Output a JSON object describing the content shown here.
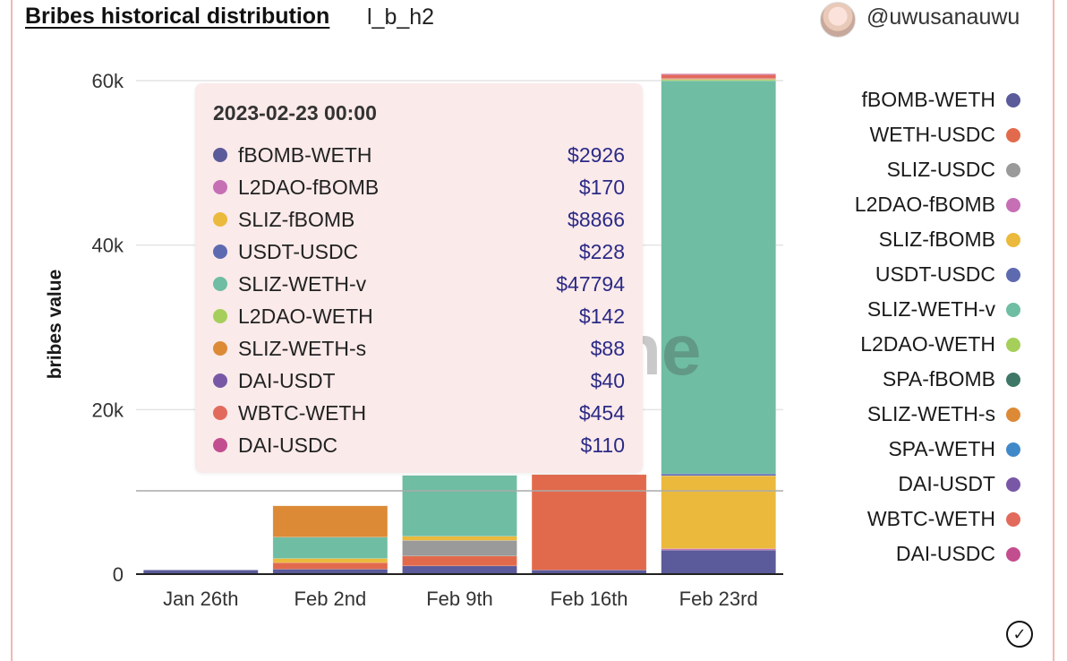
{
  "header": {
    "title": "Bribes historical distribution",
    "subtitle": "l_b_h2",
    "username": "@uwusanauwu"
  },
  "watermark": "ne",
  "chart_data": {
    "type": "bar",
    "stacked": true,
    "title": "Bribes historical distribution",
    "xlabel": "",
    "ylabel": "bribes value",
    "ylim": [
      0,
      60000
    ],
    "yticks": [
      0,
      20000,
      40000,
      60000
    ],
    "ytick_labels": [
      "0",
      "20k",
      "40k",
      "60k"
    ],
    "categories": [
      "Jan 26th",
      "Feb 2nd",
      "Feb 9th",
      "Feb 16th",
      "Feb 23rd"
    ],
    "series": [
      {
        "name": "fBOMB-WETH",
        "color": "#5b5a9a",
        "values": [
          500,
          600,
          1000,
          500,
          2926
        ]
      },
      {
        "name": "WETH-USDC",
        "color": "#e26a4c",
        "values": [
          0,
          800,
          1200,
          11600,
          0
        ]
      },
      {
        "name": "SLIZ-USDC",
        "color": "#9a9a9a",
        "values": [
          0,
          0,
          1900,
          0,
          0
        ]
      },
      {
        "name": "L2DAO-fBOMB",
        "color": "#c66fb5",
        "values": [
          0,
          0,
          0,
          0,
          170
        ]
      },
      {
        "name": "SLIZ-fBOMB",
        "color": "#ebb93c",
        "values": [
          0,
          500,
          500,
          0,
          8866
        ]
      },
      {
        "name": "USDT-USDC",
        "color": "#5e6ab0",
        "values": [
          0,
          0,
          0,
          0,
          228
        ]
      },
      {
        "name": "SLIZ-WETH-v",
        "color": "#6fbda3",
        "values": [
          0,
          2600,
          7400,
          0,
          47794
        ]
      },
      {
        "name": "L2DAO-WETH",
        "color": "#a5cf5a",
        "values": [
          0,
          0,
          0,
          0,
          142
        ]
      },
      {
        "name": "SPA-fBOMB",
        "color": "#3f7767",
        "values": [
          0,
          0,
          0,
          0,
          0
        ]
      },
      {
        "name": "SLIZ-WETH-s",
        "color": "#dc8a36",
        "values": [
          0,
          3800,
          0,
          0,
          88
        ]
      },
      {
        "name": "SPA-WETH",
        "color": "#4089c9",
        "values": [
          0,
          0,
          0,
          0,
          0
        ]
      },
      {
        "name": "DAI-USDT",
        "color": "#7858a6",
        "values": [
          0,
          0,
          0,
          0,
          40
        ]
      },
      {
        "name": "WBTC-WETH",
        "color": "#e26a5c",
        "values": [
          0,
          0,
          0,
          0,
          454
        ]
      },
      {
        "name": "DAI-USDC",
        "color": "#c24e8f",
        "values": [
          0,
          0,
          0,
          0,
          110
        ]
      }
    ],
    "grid": true,
    "legend_position": "right"
  },
  "tooltip": {
    "title": "2023-02-23 00:00",
    "rows": [
      {
        "name": "fBOMB-WETH",
        "value": "$2926",
        "color": "#5b5a9a"
      },
      {
        "name": "L2DAO-fBOMB",
        "value": "$170",
        "color": "#c66fb5"
      },
      {
        "name": "SLIZ-fBOMB",
        "value": "$8866",
        "color": "#ebb93c"
      },
      {
        "name": "USDT-USDC",
        "value": "$228",
        "color": "#5e6ab0"
      },
      {
        "name": "SLIZ-WETH-v",
        "value": "$47794",
        "color": "#6fbda3"
      },
      {
        "name": "L2DAO-WETH",
        "value": "$142",
        "color": "#a5cf5a"
      },
      {
        "name": "SLIZ-WETH-s",
        "value": "$88",
        "color": "#dc8a36"
      },
      {
        "name": "DAI-USDT",
        "value": "$40",
        "color": "#7858a6"
      },
      {
        "name": "WBTC-WETH",
        "value": "$454",
        "color": "#e26a5c"
      },
      {
        "name": "DAI-USDC",
        "value": "$110",
        "color": "#c24e8f"
      }
    ]
  },
  "check_icon": "checkmark-circle-icon"
}
